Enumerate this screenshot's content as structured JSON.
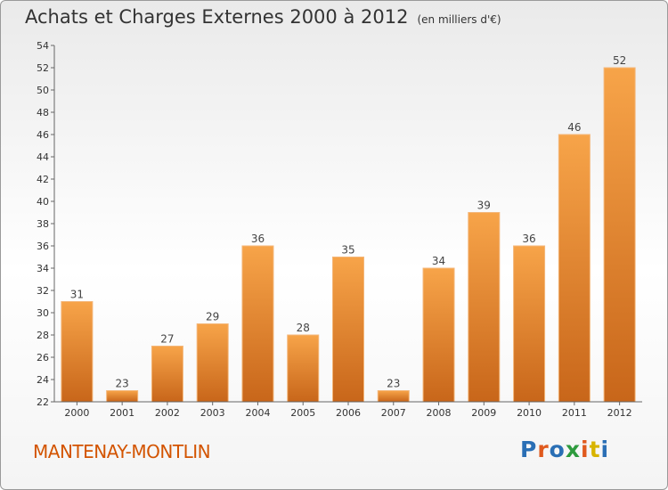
{
  "header": {
    "title": "Achats et Charges Externes 2000 à 2012",
    "subtitle": "(en milliers d'€)"
  },
  "footer": {
    "commune": "MANTENAY-MONTLIN",
    "logo": "Proxiti",
    "logo_colors": [
      "#2a6fb5",
      "#e05a1e",
      "#2a6fb5",
      "#2e9b3e",
      "#e05a1e",
      "#d8b400",
      "#2a6fb5"
    ]
  },
  "chart_data": {
    "type": "bar",
    "categories": [
      "2000",
      "2001",
      "2002",
      "2003",
      "2004",
      "2005",
      "2006",
      "2007",
      "2008",
      "2009",
      "2010",
      "2011",
      "2012"
    ],
    "values": [
      31,
      23,
      27,
      29,
      36,
      28,
      35,
      23,
      34,
      39,
      36,
      46,
      52
    ],
    "title": "Achats et Charges Externes 2000 à 2012",
    "ylim": [
      22,
      54
    ],
    "yticks": [
      22,
      24,
      26,
      28,
      30,
      32,
      34,
      36,
      38,
      40,
      42,
      44,
      46,
      48,
      50,
      52,
      54
    ],
    "grid": false,
    "bar_color_top": "#f7a449",
    "bar_color_bottom": "#c8661a"
  }
}
